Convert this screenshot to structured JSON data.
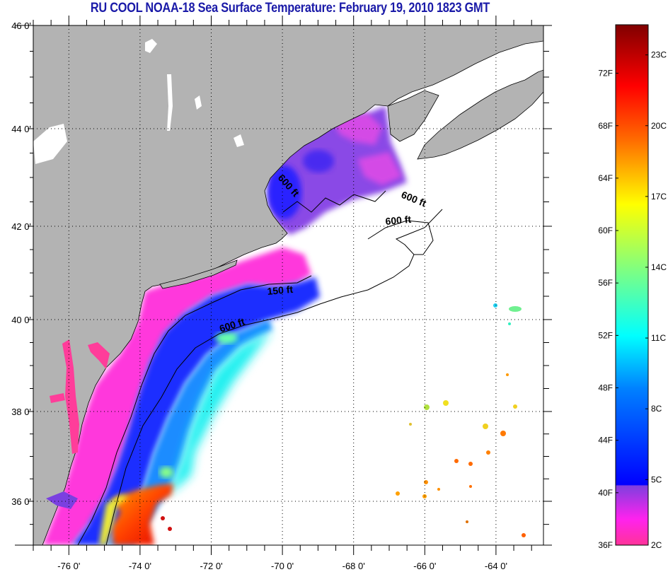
{
  "title": "RU COOL  NOAA-18  Sea Surface Temperature:  February 19, 2010 1823 GMT",
  "map": {
    "lat_labels": [
      "46 0'",
      "44 0'",
      "42 0'",
      "40 0'",
      "38 0'",
      "36 0'"
    ],
    "lat_values": [
      46,
      44,
      42,
      40,
      38,
      36
    ],
    "lon_labels": [
      "-76 0'",
      "-74 0'",
      "-72 0'",
      "-70 0'",
      "-68 0'",
      "-66 0'",
      "-64 0'"
    ],
    "lon_values": [
      -76,
      -74,
      -72,
      -70,
      -68,
      -66,
      -64
    ],
    "lon_range": [
      -77,
      -62.7
    ],
    "lat_range": [
      35.05,
      46
    ],
    "land_color": "#b3b3b3",
    "contour_labels": [
      "600 ft",
      "600 ft",
      "600 ft",
      "150 ft",
      "600 ft"
    ]
  },
  "colorbar": {
    "fahrenheit_labels": [
      "72F",
      "68F",
      "64F",
      "60F",
      "56F",
      "52F",
      "48F",
      "44F",
      "40F",
      "36F"
    ],
    "fahrenheit_values": [
      72,
      68,
      64,
      60,
      56,
      52,
      48,
      44,
      40,
      36
    ],
    "celsius_labels": [
      "23C",
      "20C",
      "17C",
      "14C",
      "11C",
      "8C",
      "5C",
      "2C"
    ],
    "celsius_values": [
      23,
      20,
      17,
      14,
      11,
      8,
      5,
      2
    ],
    "range_f": [
      36,
      75.7
    ],
    "colors": [
      "#800000",
      "#ff0000",
      "#ff8000",
      "#ffff00",
      "#80ff80",
      "#00ffff",
      "#0080ff",
      "#0000ff",
      "#7f3fdf",
      "#ff33ff",
      "#ff3399"
    ]
  }
}
